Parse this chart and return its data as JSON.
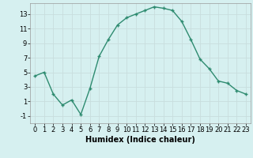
{
  "x": [
    0,
    1,
    2,
    3,
    4,
    5,
    6,
    7,
    8,
    9,
    10,
    11,
    12,
    13,
    14,
    15,
    16,
    17,
    18,
    19,
    20,
    21,
    22,
    23
  ],
  "y": [
    4.5,
    5.0,
    2.0,
    0.5,
    1.2,
    -0.8,
    2.8,
    7.2,
    9.5,
    11.5,
    12.5,
    13.0,
    13.5,
    14.0,
    13.8,
    13.5,
    12.0,
    9.5,
    6.8,
    5.5,
    3.8,
    3.5,
    2.5,
    2.0
  ],
  "line_color": "#2e8b70",
  "marker": "+",
  "marker_size": 3,
  "marker_linewidth": 1.0,
  "line_width": 1.0,
  "background_color": "#d6f0f0",
  "grid_color": "#c8dede",
  "xlabel": "Humidex (Indice chaleur)",
  "xlim": [
    -0.5,
    23.5
  ],
  "ylim": [
    -2.0,
    14.5
  ],
  "yticks": [
    -1,
    1,
    3,
    5,
    7,
    9,
    11,
    13
  ],
  "xticks": [
    0,
    1,
    2,
    3,
    4,
    5,
    6,
    7,
    8,
    9,
    10,
    11,
    12,
    13,
    14,
    15,
    16,
    17,
    18,
    19,
    20,
    21,
    22,
    23
  ],
  "xlabel_fontsize": 7,
  "tick_fontsize": 6,
  "figwidth": 3.2,
  "figheight": 2.0,
  "dpi": 100
}
